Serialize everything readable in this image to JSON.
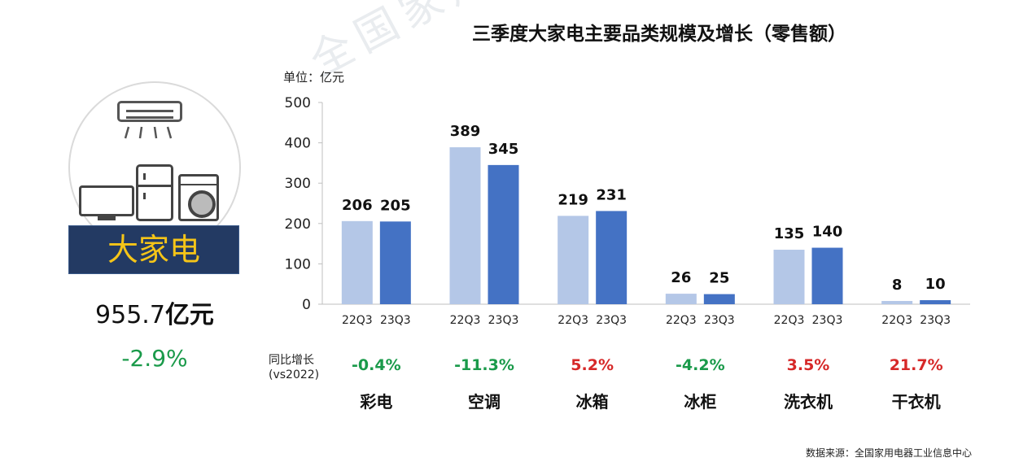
{
  "title": "三季度大家电主要品类规模及增长（零售额）",
  "watermark": "全国家用电器工业信息中心",
  "left_panel": {
    "banner": "大家电",
    "total_value": "955.7",
    "total_unit": "亿元",
    "total_change": "-2.9%",
    "icons": [
      "air-conditioner-icon",
      "tv-icon",
      "fridge-icon",
      "washing-machine-icon"
    ]
  },
  "unit_label": "单位：亿元",
  "yoy_label": [
    "同比增长",
    "(vs2022)"
  ],
  "source": "数据来源：全国家用电器工业信息中心",
  "colors": {
    "series_22": "#b4c7e7",
    "series_23": "#4472c4",
    "positive": "#d62828",
    "negative": "#1a9a4a",
    "banner_bg": "#233a63",
    "banner_text": "#f5c518"
  },
  "chart_data": {
    "type": "bar",
    "categories": [
      "彩电",
      "空调",
      "冰箱",
      "冰柜",
      "洗衣机",
      "干衣机"
    ],
    "series": [
      {
        "name": "22Q3",
        "values": [
          206,
          389,
          219,
          26,
          135,
          8
        ]
      },
      {
        "name": "23Q3",
        "values": [
          205,
          345,
          231,
          25,
          140,
          10
        ]
      }
    ],
    "yoy": [
      "-0.4%",
      "-11.3%",
      "5.2%",
      "-4.2%",
      "3.5%",
      "21.7%"
    ],
    "ylim": [
      0,
      500
    ],
    "yticks": [
      0,
      100,
      200,
      300,
      400,
      500
    ],
    "grid": false
  }
}
